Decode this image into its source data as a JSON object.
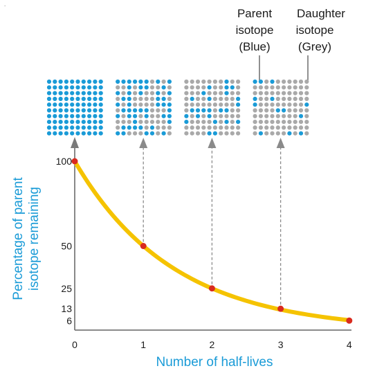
{
  "corner_mark": ".",
  "legend": {
    "parent": [
      "Parent",
      "isotope",
      "(Blue)"
    ],
    "daughter": [
      "Daughter",
      "isotope",
      "(Grey)"
    ]
  },
  "colors": {
    "parent": "#1a9bd7",
    "daughter": "#a9a9a9",
    "curve": "#f5c300",
    "point": "#d92b1f",
    "axis": "#7a7a7a",
    "title": "#1a9bd7"
  },
  "chart_data": {
    "type": "line",
    "xlabel": "Number of half-lives",
    "ylabel": [
      "Percentage of parent",
      "isotope remaining"
    ],
    "x": [
      0,
      1,
      2,
      3,
      4
    ],
    "x_ticks": [
      "0",
      "1",
      "2",
      "3",
      "4"
    ],
    "y": [
      100,
      50,
      25,
      13,
      6
    ],
    "y_ticks": [
      "100",
      "50",
      "25",
      "13",
      "6"
    ],
    "xlim": [
      0,
      4
    ],
    "ylim": [
      0,
      100
    ]
  },
  "grids": [
    {
      "half_lives": 0,
      "total_dots": 100,
      "parent_dots": 100
    },
    {
      "half_lives": 1,
      "total_dots": 100,
      "parent_dots": 50
    },
    {
      "half_lives": 2,
      "total_dots": 100,
      "parent_dots": 25
    },
    {
      "half_lives": 3,
      "total_dots": 100,
      "parent_dots": 13
    }
  ]
}
